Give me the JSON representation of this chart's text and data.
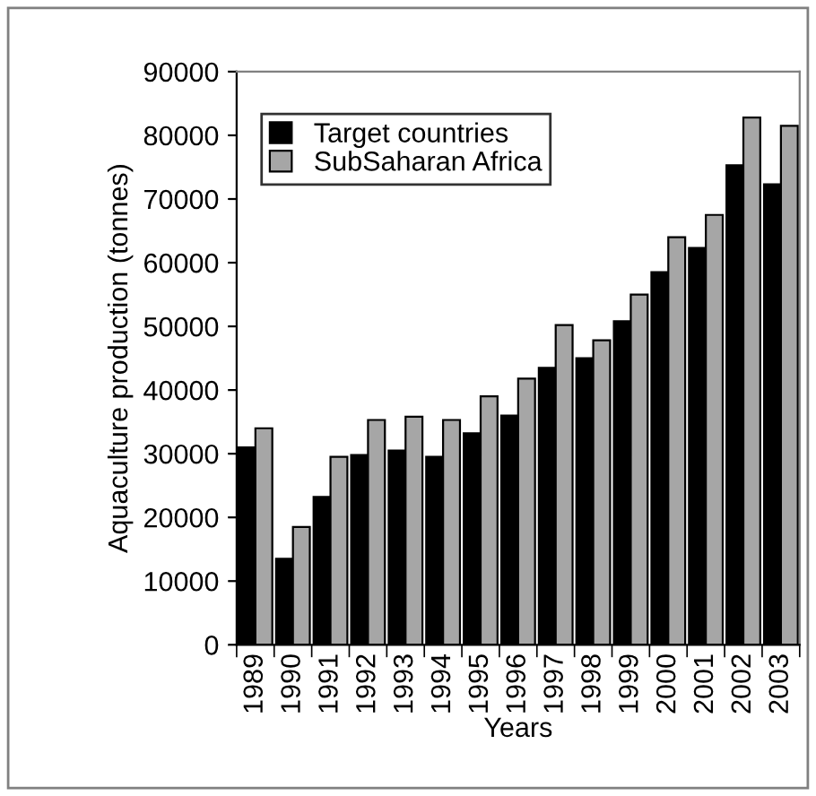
{
  "chart_data": {
    "type": "bar",
    "xlabel": "Years",
    "ylabel": "Aquaculture production (tonnes)",
    "categories": [
      "1989",
      "1990",
      "1991",
      "1992",
      "1993",
      "1994",
      "1995",
      "1996",
      "1997",
      "1998",
      "1999",
      "2000",
      "2001",
      "2002",
      "2003"
    ],
    "series": [
      {
        "name": "Target countries",
        "color": "#000000",
        "values": [
          31000,
          13500,
          23200,
          29800,
          30500,
          29500,
          33200,
          36000,
          43500,
          45000,
          50800,
          58500,
          62300,
          75300,
          72300
        ]
      },
      {
        "name": "SubSaharan Africa",
        "color": "#a6a6a6",
        "values": [
          34000,
          18500,
          29500,
          35300,
          35800,
          35300,
          39000,
          41800,
          50200,
          47800,
          55000,
          64000,
          67500,
          82800,
          81500
        ]
      }
    ],
    "ylim": [
      0,
      90000
    ],
    "yticks": [
      0,
      10000,
      20000,
      30000,
      40000,
      50000,
      60000,
      70000,
      80000,
      90000
    ],
    "grid": false,
    "legend": "top left"
  }
}
